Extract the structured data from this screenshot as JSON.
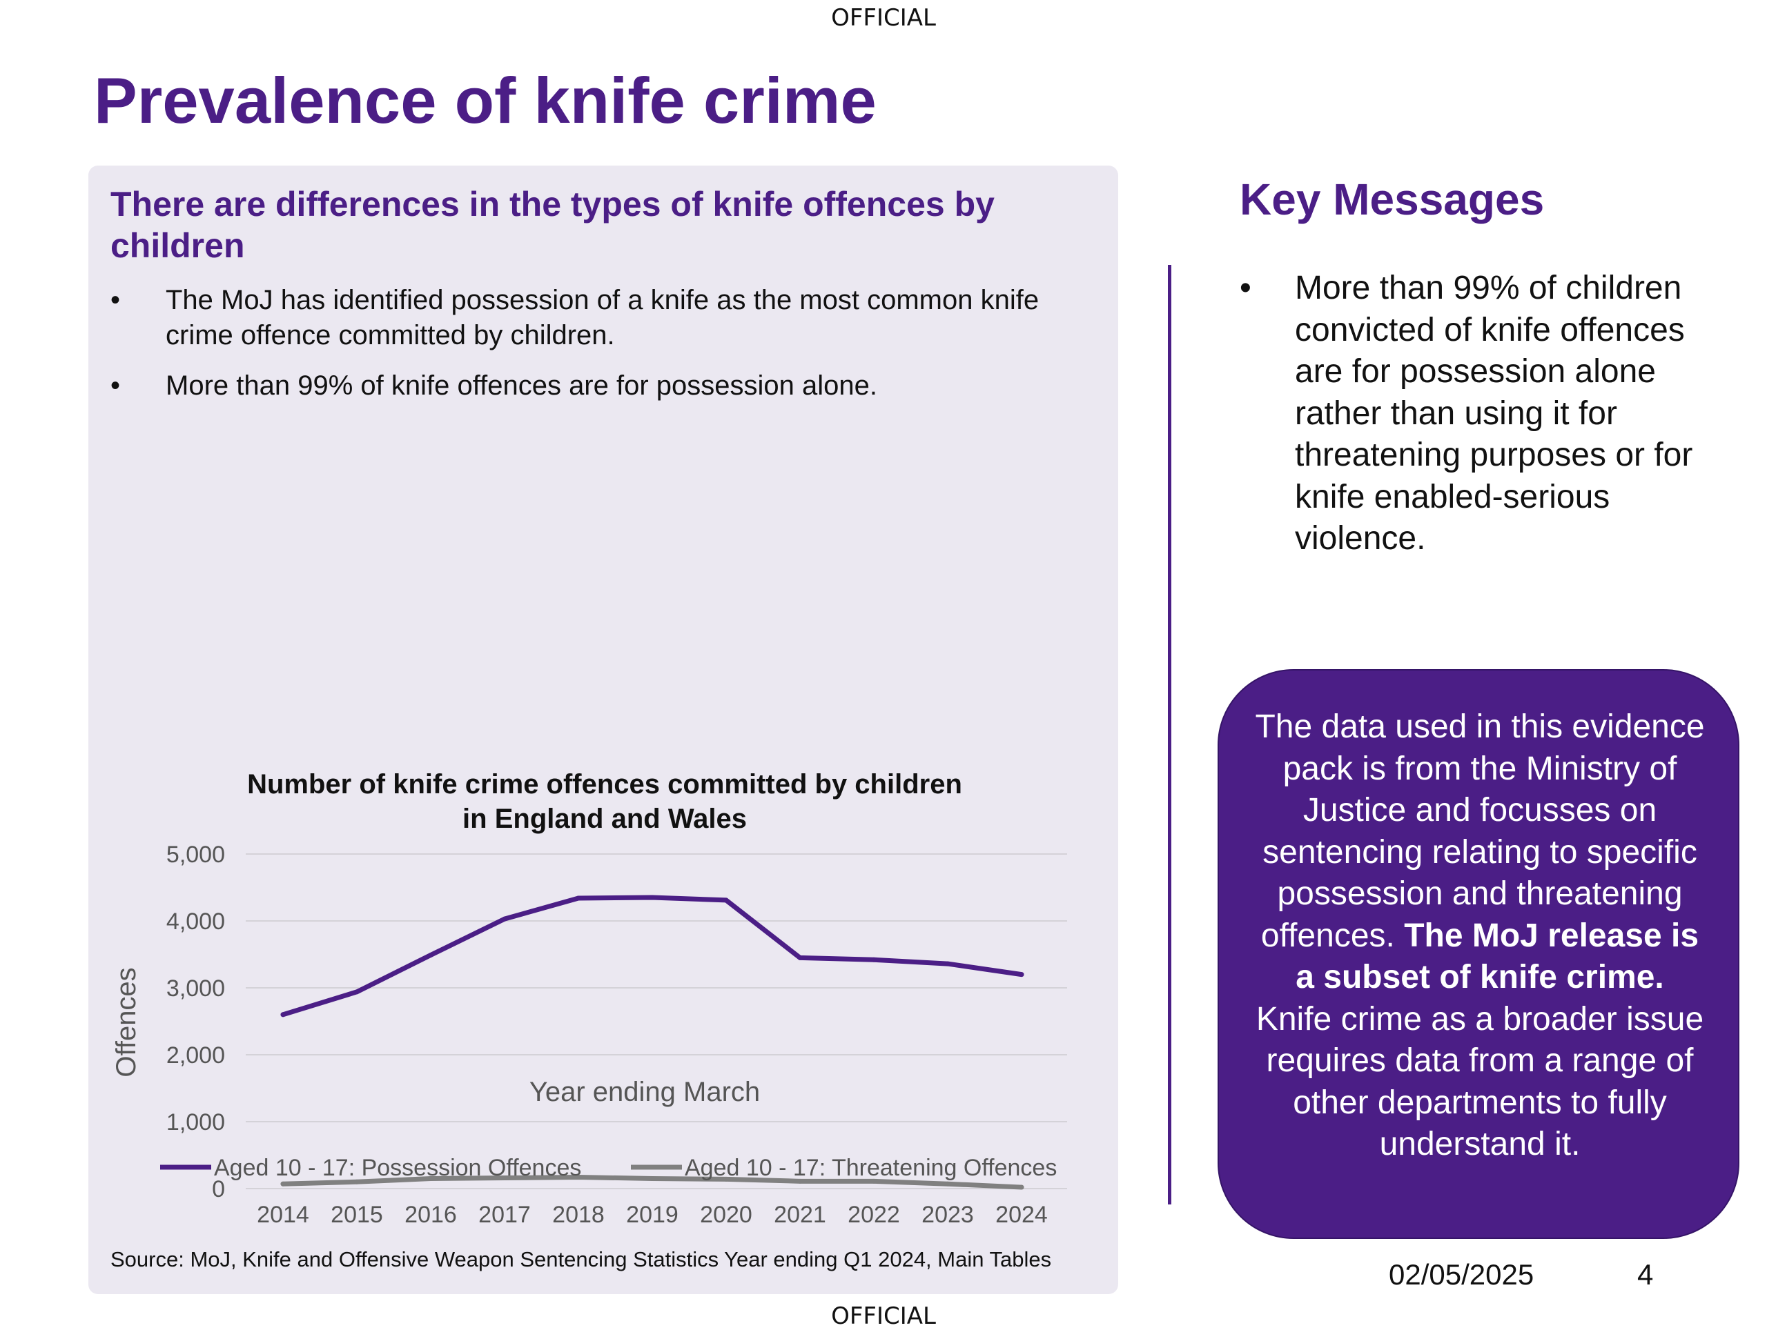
{
  "security_marking_top": "OFFICIAL",
  "security_marking_bottom": "OFFICIAL",
  "title": "Prevalence of knife crime",
  "left_panel": {
    "heading": "There are differences in the types of knife offences by children",
    "bullets": [
      "The MoJ has identified possession of a knife as the most common knife crime offence committed by children.",
      "More than 99% of knife offences are for possession alone."
    ],
    "source": "Source: MoJ, Knife and Offensive Weapon Sentencing Statistics Year ending Q1 2024, Main Tables"
  },
  "key_messages": {
    "heading": "Key Messages",
    "bullets": [
      "More than 99% of children convicted of knife offences are for possession alone rather than using it for threatening purposes or for knife enabled-serious violence."
    ]
  },
  "info_box": {
    "text_before": "The data used in this evidence pack is from the Ministry of Justice and focusses on sentencing relating to specific possession and threatening offences.",
    "text_bold": "The MoJ release is a subset of knife crime.",
    "text_after": "Knife crime as a broader issue requires data from a range of other departments to fully understand it."
  },
  "footer": {
    "date": "02/05/2025",
    "page_number": "4"
  },
  "chart_data": {
    "type": "line",
    "title": "Number of knife crime offences committed by children in England and Wales",
    "title_lines": [
      "Number of knife crime offences committed by children",
      "in England and Wales"
    ],
    "xlabel": "Year ending March",
    "ylabel": "Offences",
    "categories": [
      "2014",
      "2015",
      "2016",
      "2017",
      "2018",
      "2019",
      "2020",
      "2021",
      "2022",
      "2023",
      "2024"
    ],
    "ylim": [
      0,
      5000
    ],
    "yticks": [
      0,
      1000,
      2000,
      3000,
      4000,
      5000
    ],
    "ytick_labels": [
      "0",
      "1,000",
      "2,000",
      "3,000",
      "4,000",
      "5,000"
    ],
    "grid": true,
    "legend_position": "bottom",
    "series": [
      {
        "name": "Aged 10 - 17: Possession Offences",
        "color": "#4b1e86",
        "values": [
          2600,
          2940,
          3490,
          4030,
          4340,
          4350,
          4310,
          3450,
          3420,
          3360,
          3200
        ]
      },
      {
        "name": "Aged 10 - 17: Threatening Offences",
        "color": "#808080",
        "values": [
          70,
          100,
          150,
          160,
          170,
          150,
          140,
          110,
          110,
          70,
          20
        ]
      }
    ]
  }
}
